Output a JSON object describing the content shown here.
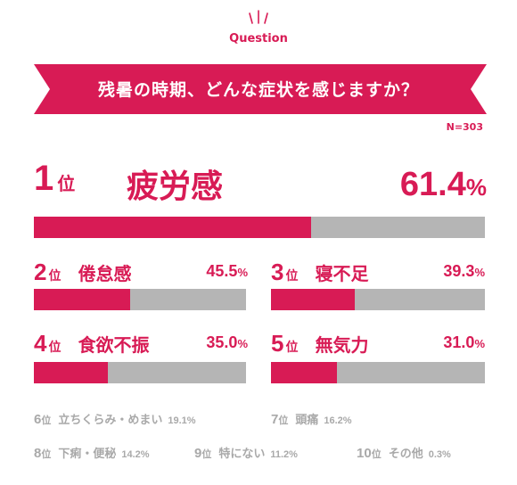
{
  "header": {
    "question_label": "Question",
    "title": "残暑の時期、どんな症状を感じますか？",
    "n_label": "N=303"
  },
  "colors": {
    "accent": "#d81b55",
    "bar_track": "#b5b5b5",
    "muted_text": "#a9a9a9"
  },
  "rank_suffix": "位",
  "percent_sign": "%",
  "chart_data": {
    "type": "bar",
    "title": "残暑の時期、どんな症状を感じますか？",
    "xlabel": "",
    "ylabel": "",
    "ylim": [
      0,
      100
    ],
    "categories": [
      "疲労感",
      "倦怠感",
      "寝不足",
      "食欲不振",
      "無気力",
      "立ちくらみ・めまい",
      "頭痛",
      "下痢・便秘",
      "特にない",
      "その他"
    ],
    "values": [
      61.4,
      45.5,
      39.3,
      35.0,
      31.0,
      19.1,
      16.2,
      14.2,
      11.2,
      0.3
    ],
    "ranks": [
      "1",
      "2",
      "3",
      "4",
      "5",
      "6",
      "7",
      "8",
      "9",
      "10"
    ],
    "value_labels": [
      "61.4",
      "45.5",
      "39.3",
      "35.0",
      "31.0",
      "19.1",
      "16.2",
      "14.2",
      "11.2",
      "0.3"
    ]
  }
}
